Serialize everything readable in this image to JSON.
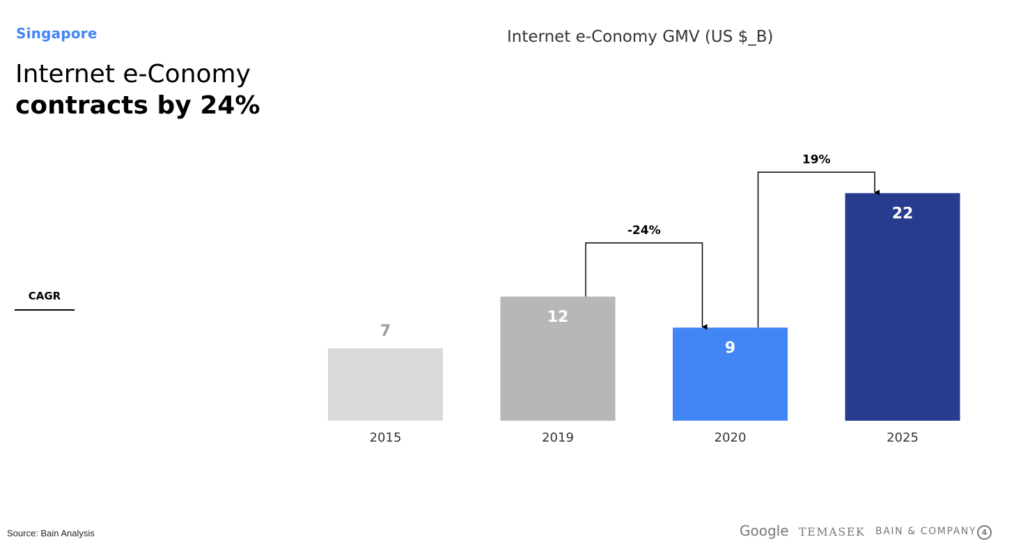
{
  "header": {
    "region": "Singapore",
    "headline_line1": "Internet e-Conomy",
    "headline_line2": "contracts by 24%"
  },
  "cagr_label": "CAGR",
  "chart_title": "Internet e-Conomy GMV (US $_B)",
  "chart_data": {
    "type": "bar",
    "title": "Internet e-Conomy GMV (US $_B)",
    "xlabel": "",
    "ylabel": "",
    "categories": [
      "2015",
      "2019",
      "2020",
      "2025"
    ],
    "values": [
      7,
      12,
      9,
      22
    ],
    "value_labels": [
      "7",
      "12",
      "9",
      "22"
    ],
    "colors": [
      "#d9d9d9",
      "#b7b7b7",
      "#4285f4",
      "#283c8f"
    ],
    "value_label_colors": [
      "#9e9e9e",
      "#ffffff",
      "#ffffff",
      "#ffffff"
    ],
    "grid": false,
    "legend": "none",
    "annotations": [
      {
        "from": "2019",
        "to": "2020",
        "label": "-24%"
      },
      {
        "from": "2020",
        "to": "2025",
        "label": "19%"
      }
    ]
  },
  "footer": {
    "source": "Source: Bain Analysis",
    "logo_google": "Google",
    "logo_temasek": "TEMASEK",
    "logo_bain": "BAIN & COMPANY",
    "bain_mark": "4"
  }
}
